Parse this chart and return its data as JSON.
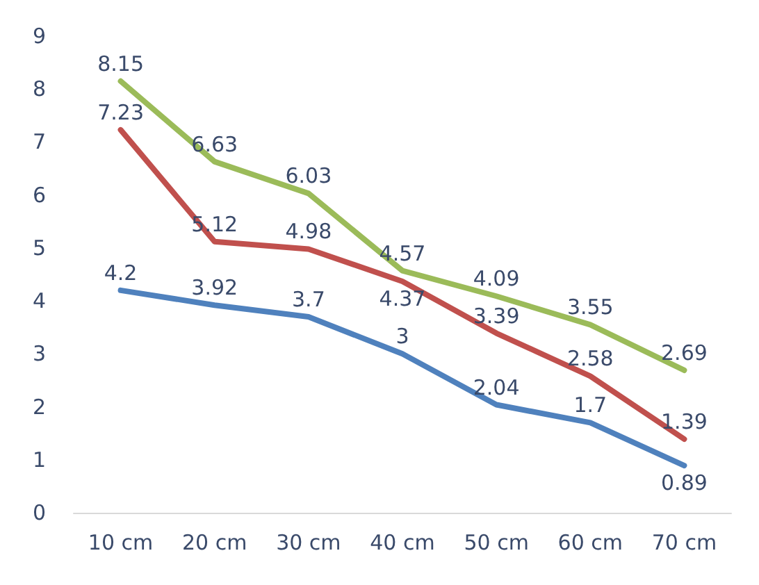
{
  "chart_data": {
    "type": "line",
    "categories": [
      "10 cm",
      "20 cm",
      "30 cm",
      "40 cm",
      "50 cm",
      "60 cm",
      "70 cm"
    ],
    "series": [
      {
        "color": "#4f81bd",
        "values": [
          4.2,
          3.92,
          3.7,
          3,
          2.04,
          1.7,
          0.89
        ]
      },
      {
        "color": "#c0504d",
        "values": [
          7.23,
          5.12,
          4.98,
          4.37,
          3.39,
          2.58,
          1.39
        ]
      },
      {
        "color": "#9bbb59",
        "values": [
          8.15,
          6.63,
          6.03,
          4.57,
          4.09,
          3.55,
          2.69
        ]
      }
    ],
    "ylim": [
      0,
      9
    ],
    "yticks": [
      0,
      1,
      2,
      3,
      4,
      5,
      6,
      7,
      8,
      9
    ],
    "grid": false,
    "marker": "none",
    "line_style": "solid",
    "data_labels": true
  }
}
